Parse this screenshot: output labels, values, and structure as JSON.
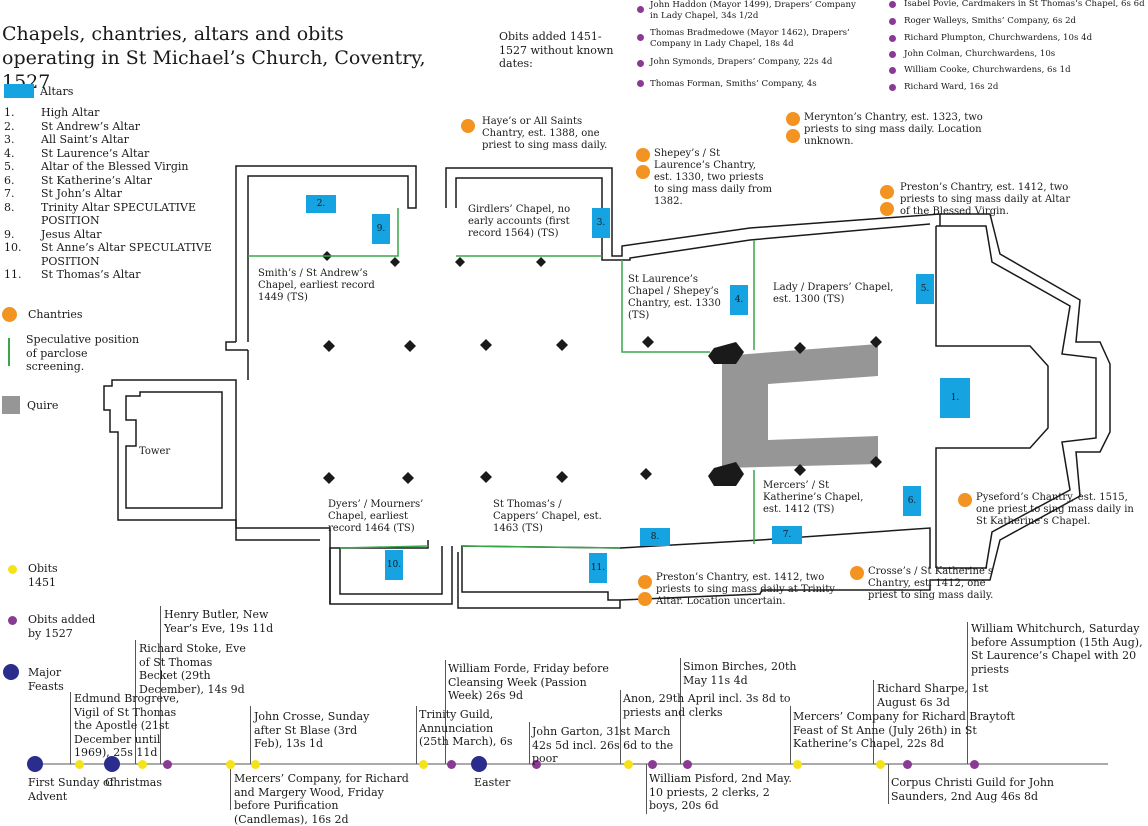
{
  "title": "Chapels, chantries, altars and obits operating in St Michael’s Church, Coventry, 1527",
  "legend": {
    "altars_label": "Altars",
    "chantries_label": "Chantries",
    "parclose_label": "Speculative position of parclose screening.",
    "quire_label": "Quire",
    "obits1451_label": "Obits 1451",
    "obits1527_label": "Obits added by 1527",
    "feasts_label": "Major Feasts"
  },
  "colors": {
    "altar": "#15a3e2",
    "chantry": "#f39321",
    "parclose": "#3aa64a",
    "quire": "#969696",
    "obit1451": "#f5e31a",
    "obit1527": "#8b3a93",
    "feast": "#2a2d8c"
  },
  "altars": [
    {
      "num": "1.",
      "name": "High Altar"
    },
    {
      "num": "2.",
      "name": "St Andrew’s Altar"
    },
    {
      "num": "3.",
      "name": "All Saint’s Altar"
    },
    {
      "num": "4.",
      "name": "St Laurence’s Altar"
    },
    {
      "num": "5.",
      "name": "Altar of the Blessed Virgin"
    },
    {
      "num": "6.",
      "name": "St Katherine’s Altar"
    },
    {
      "num": "7.",
      "name": "St John’s Altar"
    },
    {
      "num": "8.",
      "name": "Trinity Altar SPECULATIVE POSITION"
    },
    {
      "num": "9.",
      "name": "Jesus Altar"
    },
    {
      "num": "10.",
      "name": "St Anne’s Altar SPECULATIVE POSITION"
    },
    {
      "num": "11.",
      "name": "St Thomas’s Altar"
    }
  ],
  "undated_obits": {
    "heading": "Obits added 1451-1527 without known dates:",
    "col1": [
      "John Haddon (Mayor 1499), Drapers’ Company in Lady Chapel, 34s 1/2d",
      "Thomas Bradmedowe (Mayor 1462), Drapers’ Company in Lady Chapel, 18s 4d",
      "John Symonds, Drapers’ Company, 22s 4d",
      "Thomas Forman, Smiths’ Company, 4s"
    ],
    "col2": [
      "Isabel Povie, Cardmakers in St Thomas’s Chapel, 6s 6d",
      "Roger Walleys, Smiths’ Company, 6s 2d",
      "Richard Plumpton, Churchwardens, 10s 4d",
      "John Colman, Churchwardens, 10s",
      "William Cooke, Churchwardens, 6s 1d",
      "Richard Ward, 16s 2d"
    ]
  },
  "chapels": {
    "smiths": "Smith’s / St Andrew’s Chapel, earliest record 1449 (TS)",
    "girdlers": "Girdlers’ Chapel, no early accounts (first record 1564) (TS)",
    "laurence": "St Laurence’s Chapel / Shepey’s Chantry, est. 1330 (TS)",
    "lady": "Lady / Drapers’ Chapel, est. 1300 (TS)",
    "mercers": "Mercers’ / St Katherine’s Chapel, est. 1412 (TS)",
    "dyers": "Dyers’ / Mourners’ Chapel, earliest record 1464 (TS)",
    "thomas": "St Thomas’s / Cappers’ Chapel, est. 1463 (TS)",
    "tower": "Tower"
  },
  "chantries": {
    "haye": "Haye’s or All Saints Chantry, est. 1388, one priest to sing mass daily.",
    "shepey": "Shepey’s / St Laurence’s Chantry, est. 1330, two priests to sing mass daily from 1382.",
    "merynton": "Merynton’s Chantry, est. 1323, two priests to sing mass daily. Location unknown.",
    "preston_top": "Preston’s Chantry, est. 1412, two priests to sing mass daily at Altar of the Blessed Virgin.",
    "pyseford": "Pyseford’s Chantry, est. 1515, one priest to sing mass daily in St Katherine’s Chapel.",
    "crosse": "Crosse’s / St Katherine’s Chantry, est. 1412, one priest to sing mass daily.",
    "preston_bottom": "Preston’s Chantry, est. 1412, two priests to sing mass daily at Trinity Altar. Location uncertain."
  },
  "timeline": {
    "first_sunday": "First Sunday of Advent",
    "christmas": "Christmas",
    "easter": "Easter",
    "brogreve": "Edmund Brogreve, Vigil of St Thomas the Apostle (21st December until 1969), 25s 11d",
    "stoke": "Richard Stoke, Eve of St Thomas Becket (29th December), 14s 9d",
    "butler": "Henry Butler, New Year’s Eve, 19s 11d",
    "crosse_blase": "John Crosse, Sunday after St Blase (3rd Feb), 13s 1d",
    "mercers_wood": "Mercers’ Company, for Richard and Margery Wood, Friday before Purification (Candlemas), 16s 2d",
    "trinity_guild": "Trinity Guild, Annunciation (25th March), 6s",
    "forde": "William Forde, Friday before Cleansing Week (Passion Week) 26s 9d",
    "garton": "John Garton, 31st March 42s 5d incl. 26s 6d to the poor",
    "anon": "Anon, 29th April incl. 3s 8d to priests and clerks",
    "birches": "Simon Birches, 20th May 11s 4d",
    "pisford": "William Pisford, 2nd May. 10 priests, 2 clerks, 2 boys, 20s 6d",
    "braytoft": "Mercers’ Company for Richard Braytoft Feast of St Anne (July 26th) in St Katherine’s Chapel, 22s 8d",
    "sharpe": "Richard Sharpe, 1st August 6s 3d",
    "whitchurch": "William Whitchurch, Saturday before Assumption (15th Aug), St Laurence’s Chapel with 20 priests",
    "corpus": "Corpus Christi Guild for John Saunders, 2nd Aug 46s 8d"
  }
}
